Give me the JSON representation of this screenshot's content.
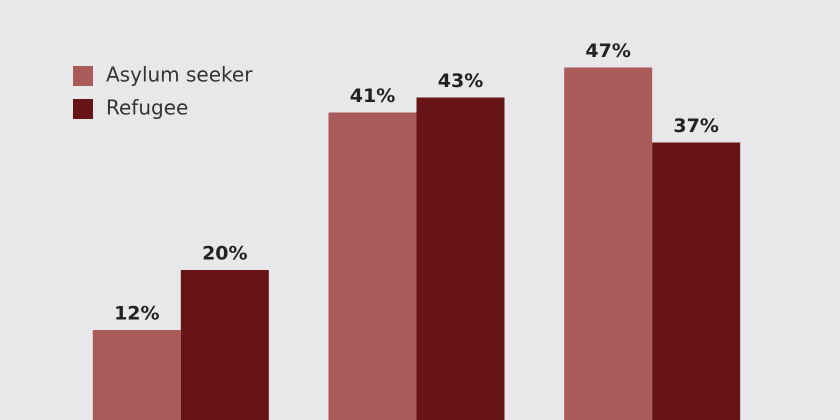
{
  "chart_data": {
    "type": "bar",
    "categories": [
      null,
      null,
      null
    ],
    "series": [
      {
        "name": "Asylum seeker",
        "color": "#ab5a5a",
        "values": [
          12,
          41,
          47
        ],
        "value_labels": [
          "12%",
          "41%",
          "47%"
        ]
      },
      {
        "name": "Refugee",
        "color": "#661416",
        "values": [
          20,
          43,
          37
        ],
        "value_labels": [
          "20%",
          "43%",
          "37%"
        ]
      }
    ],
    "ylim": [
      0,
      50
    ],
    "grid": false,
    "legend": "top-left"
  }
}
